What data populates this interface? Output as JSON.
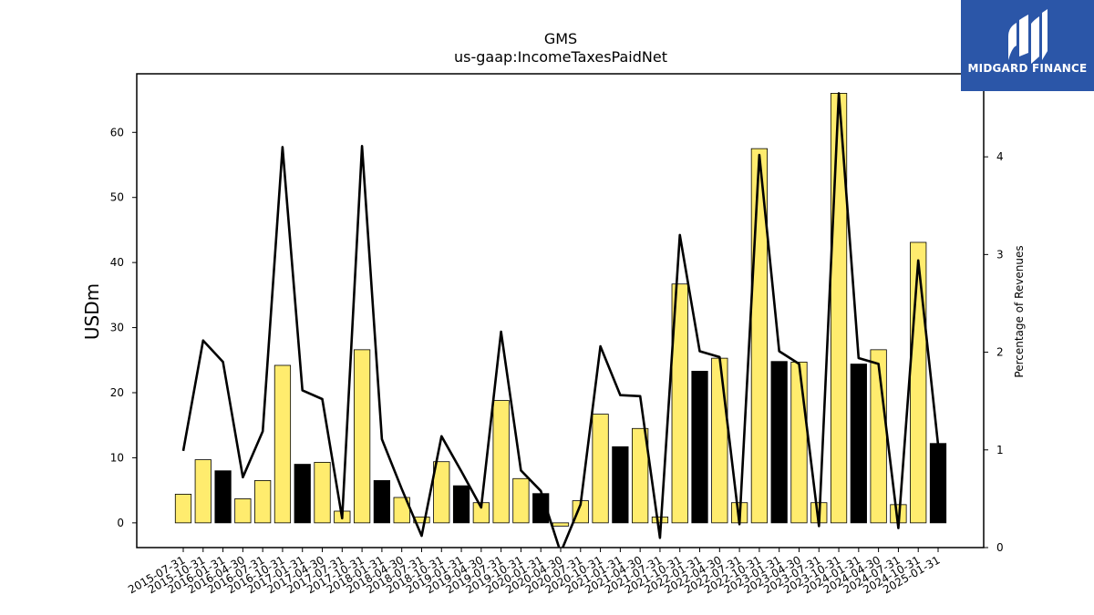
{
  "chart_data": {
    "type": "bar",
    "title": "GMS",
    "subtitle": "us-gaap:IncomeTaxesPaidNet",
    "ylabel": "USDm",
    "ylabel_right": "Percentage of Revenues",
    "ylim": [
      -3.8,
      69
    ],
    "ylim_right": [
      0,
      4.85
    ],
    "yticks": [
      0,
      10,
      20,
      30,
      40,
      50,
      60
    ],
    "yticks_right": [
      0,
      1,
      2,
      3,
      4
    ],
    "categories": [
      "2015-07-31",
      "2015-10-31",
      "2016-01-31",
      "2016-04-30",
      "2016-07-31",
      "2016-10-31",
      "2017-01-31",
      "2017-04-30",
      "2017-07-31",
      "2017-10-31",
      "2018-01-31",
      "2018-04-30",
      "2018-07-31",
      "2018-10-31",
      "2019-01-31",
      "2019-04-30",
      "2019-07-31",
      "2019-10-31",
      "2020-01-31",
      "2020-04-30",
      "2020-07-31",
      "2020-10-31",
      "2021-01-31",
      "2021-04-30",
      "2021-07-31",
      "2021-10-31",
      "2022-01-31",
      "2022-04-30",
      "2022-07-31",
      "2022-10-31",
      "2023-01-31",
      "2023-04-30",
      "2023-07-31",
      "2023-10-31",
      "2024-01-31",
      "2024-04-30",
      "2024-07-31",
      "2024-10-31",
      "2025-01-31"
    ],
    "series": [
      {
        "values": [
          4.4,
          9.7,
          8.0,
          3.7,
          6.5,
          24.2,
          9.0,
          9.3,
          1.8,
          26.6,
          6.5,
          3.9,
          0.9,
          9.4,
          5.7,
          3.1,
          18.8,
          6.8,
          4.5,
          -0.5,
          3.4,
          16.7,
          11.7,
          14.5,
          0.9,
          36.7,
          23.3,
          25.3,
          3.1,
          57.5,
          24.8,
          24.7,
          3.1,
          66.0,
          24.4,
          26.6,
          2.8,
          43.1,
          12.2
        ],
        "highlight": [
          false,
          false,
          true,
          false,
          false,
          false,
          true,
          false,
          false,
          false,
          true,
          false,
          false,
          false,
          true,
          false,
          false,
          false,
          true,
          false,
          false,
          false,
          true,
          false,
          false,
          false,
          true,
          false,
          false,
          false,
          true,
          false,
          false,
          false,
          true,
          false,
          false,
          false,
          true
        ]
      },
      {
        "axis": "right",
        "type": "line",
        "values": [
          0.99,
          2.12,
          1.9,
          0.72,
          1.19,
          4.1,
          1.61,
          1.52,
          0.3,
          4.11,
          1.11,
          0.6,
          0.12,
          1.14,
          0.78,
          0.41,
          2.21,
          0.79,
          0.58,
          -0.05,
          0.44,
          2.06,
          1.56,
          1.55,
          0.1,
          3.2,
          2.01,
          1.95,
          0.24,
          4.02,
          2.01,
          1.88,
          0.22,
          4.65,
          1.94,
          1.88,
          0.2,
          2.94,
          1.05
        ]
      }
    ],
    "colors": {
      "bar": "#ffec6e",
      "bar_highlight": "#000000",
      "line": "#000000"
    },
    "grid": false,
    "legend": "none"
  },
  "logo": {
    "text": "MIDGARD FINANCE",
    "background": "#2b56a8"
  }
}
